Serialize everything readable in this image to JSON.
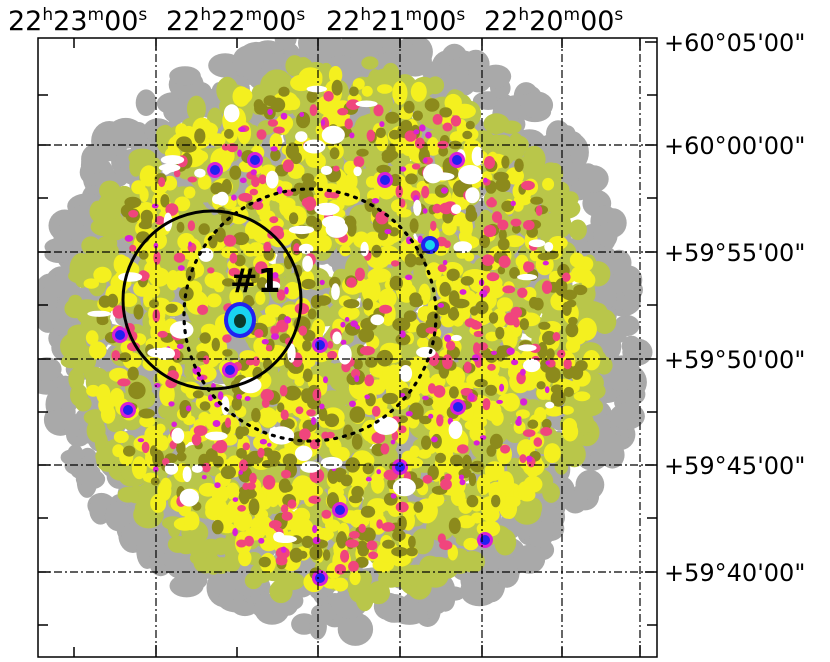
{
  "figure": {
    "ra_axis": {
      "ticks": [
        {
          "h": "22",
          "m": "23",
          "s": "00"
        },
        {
          "h": "22",
          "m": "22",
          "s": "00"
        },
        {
          "h": "22",
          "m": "21",
          "s": "00"
        },
        {
          "h": "22",
          "m": "20",
          "s": "00"
        }
      ],
      "unit_h": "h",
      "unit_m": "m",
      "unit_s": "s"
    },
    "dec_axis": {
      "ticks": [
        "+60°05'00\"",
        "+60°00'00\"",
        "+59°55'00\"",
        "+59°50'00\"",
        "+59°45'00\"",
        "+59°40'00\""
      ]
    },
    "annotation": {
      "label": "#1"
    },
    "colors": {
      "level1": "#a9a9a9",
      "level2": "#b9c64a",
      "level3": "#f4f01f",
      "level4": "#8c8a1c",
      "level5": "#f0457d",
      "level6": "#d81fd8",
      "level7": "#2121f0",
      "level8": "#19d3f0",
      "grid": "#000000"
    }
  }
}
